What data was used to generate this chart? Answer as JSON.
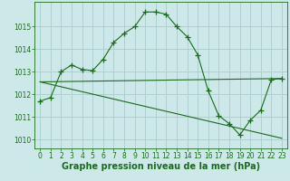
{
  "line1_x": [
    0,
    1,
    2,
    3,
    4,
    5,
    6,
    7,
    8,
    9,
    10,
    11,
    12,
    13,
    14,
    15,
    16,
    17,
    18,
    19,
    20,
    21,
    22,
    23
  ],
  "line1_y": [
    1011.7,
    1011.85,
    1013.0,
    1013.3,
    1013.1,
    1013.05,
    1013.55,
    1014.3,
    1014.7,
    1015.0,
    1015.65,
    1015.65,
    1015.55,
    1015.0,
    1014.55,
    1013.75,
    1012.15,
    1011.05,
    1010.7,
    1010.2,
    1010.85,
    1011.3,
    1012.65,
    1012.7
  ],
  "line2_x": [
    0,
    23
  ],
  "line2_y": [
    1012.55,
    1012.7
  ],
  "line3_x": [
    0,
    23
  ],
  "line3_y": [
    1012.55,
    1010.05
  ],
  "line_color": "#1a6b1a",
  "marker": "+",
  "markersize": 4,
  "background_color": "#cce8e8",
  "grid_color": "#aacccc",
  "xlabel": "Graphe pression niveau de la mer (hPa)",
  "xlim": [
    -0.5,
    23.5
  ],
  "ylim": [
    1009.6,
    1016.1
  ],
  "yticks": [
    1010,
    1011,
    1012,
    1013,
    1014,
    1015
  ],
  "xticks": [
    0,
    1,
    2,
    3,
    4,
    5,
    6,
    7,
    8,
    9,
    10,
    11,
    12,
    13,
    14,
    15,
    16,
    17,
    18,
    19,
    20,
    21,
    22,
    23
  ],
  "xlabel_fontsize": 7,
  "tick_fontsize": 5.5
}
